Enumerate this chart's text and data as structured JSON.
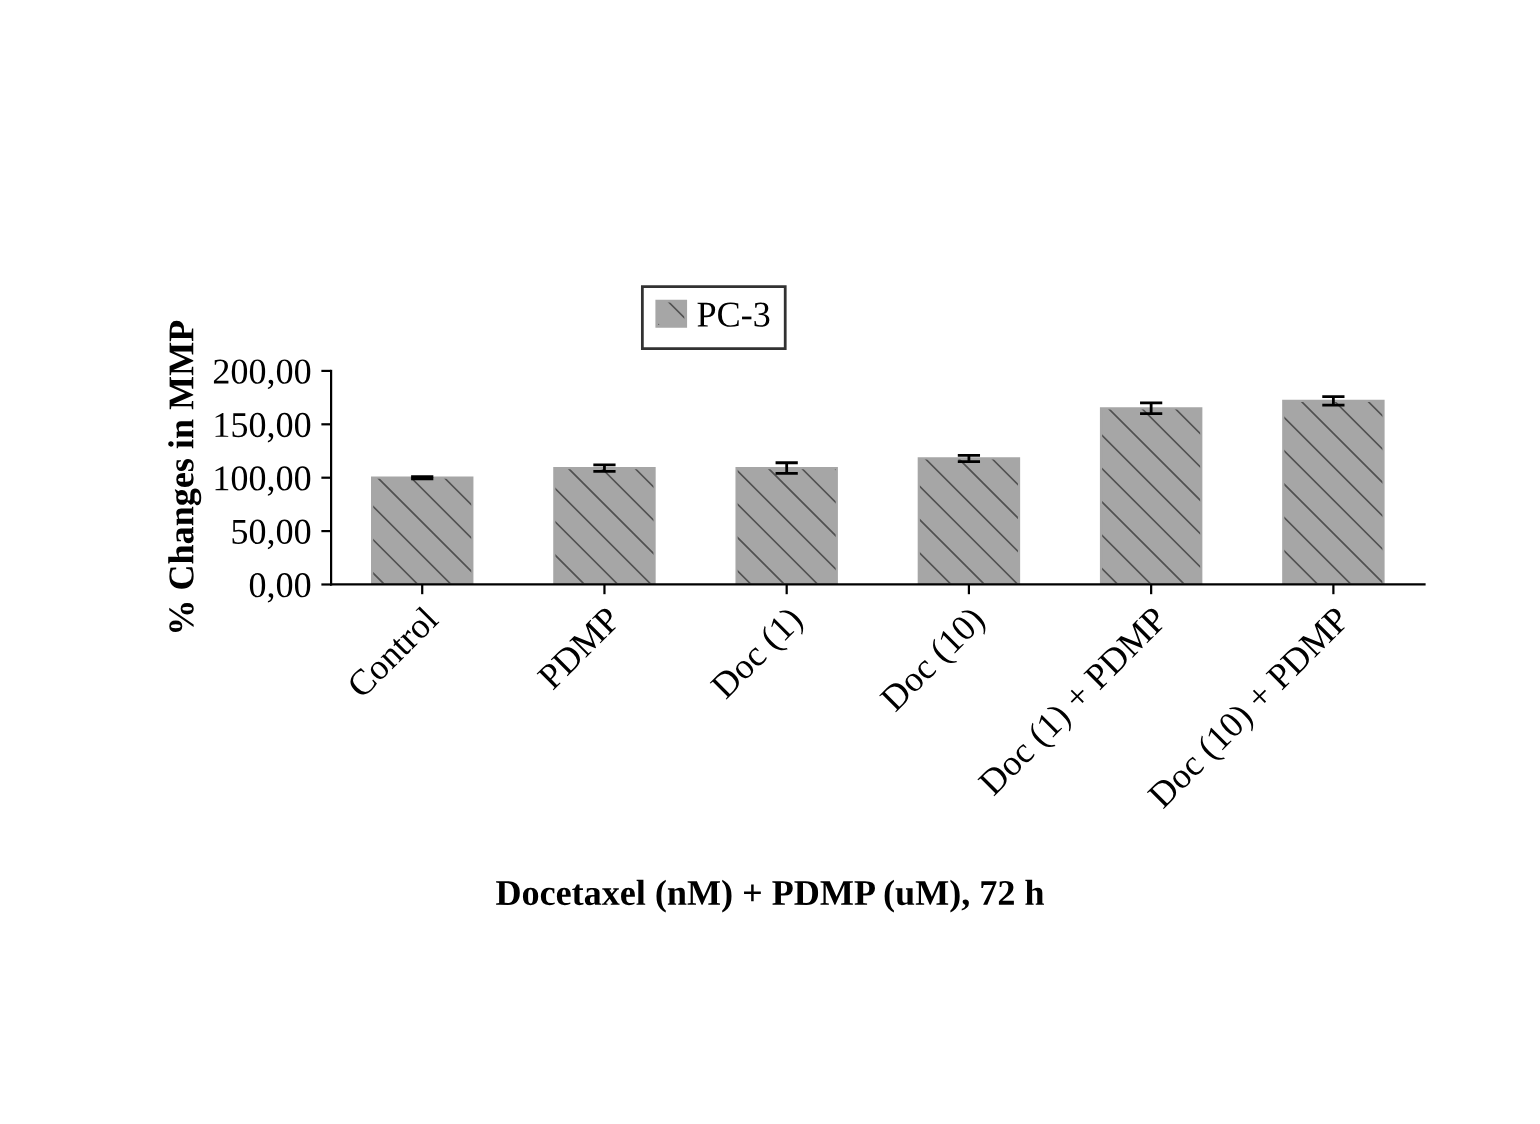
{
  "chart_data": {
    "type": "bar",
    "xlabel": "Docetaxel (nM) + PDMP (uM), 72 h",
    "ylabel": "% Changes in MMP",
    "categories": [
      "Control",
      "PDMP",
      "Doc (1)",
      "Doc (10)",
      "Doc (1) + PDMP",
      "Doc (10) + PDMP"
    ],
    "series": [
      {
        "name": "PC-3",
        "color": "#a6a6a6",
        "values": [
          100,
          109,
          109,
          118,
          165,
          172
        ],
        "errors": [
          1,
          3,
          5,
          3,
          5,
          4
        ]
      }
    ],
    "ylim": [
      0,
      200
    ],
    "yticks": [
      {
        "value": 0,
        "label": "0,00"
      },
      {
        "value": 50,
        "label": "50,00"
      },
      {
        "value": 100,
        "label": "100,00"
      },
      {
        "value": 150,
        "label": "150,00"
      },
      {
        "value": 200,
        "label": "200,00"
      }
    ],
    "legend": "top",
    "grid": false
  }
}
